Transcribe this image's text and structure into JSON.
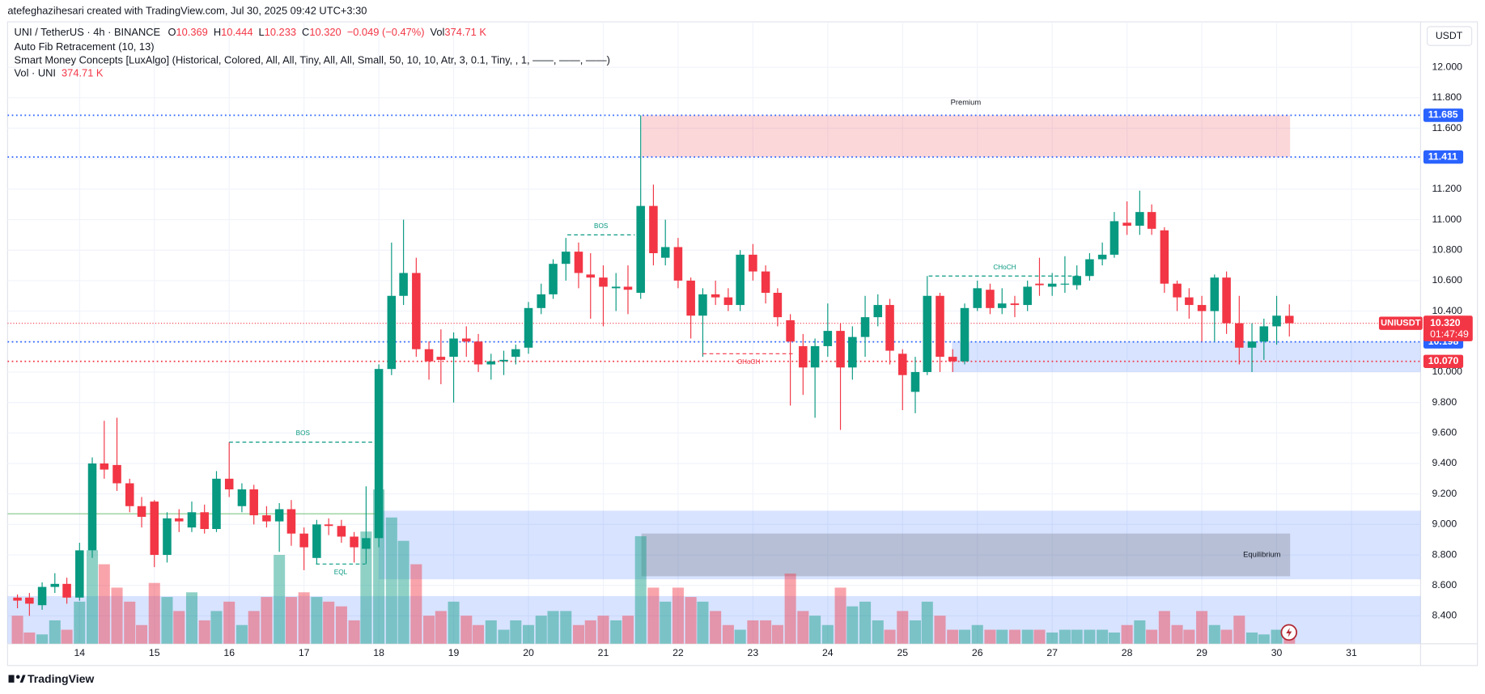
{
  "header": {
    "credit": "atefeghazihesari created with TradingView.com, Jul 30, 2025 09:42 UTC+3:30",
    "logo": "TradingView"
  },
  "legend": {
    "symbol": "UNI / TetherUS · 4h · BINANCE",
    "o_key": "O",
    "o": "10.369",
    "h_key": "H",
    "h": "10.444",
    "l_key": "L",
    "l": "10.233",
    "c_key": "C",
    "c": "10.320",
    "change": "−0.049 (−0.47%)",
    "vol_key": "Vol",
    "vol": "374.71 K",
    "indicators": [
      "Auto Fib Retracement (10, 13)",
      "Smart Money Concepts [LuxAlgo] (Historical, Colored, All, All, Tiny, All, All, Small, 50, 10, 10, Atr, 3, 0.1, Tiny, , 1, ——, ——, ——)"
    ],
    "vol_name": "Vol · UNI",
    "vol_value": "374.71 K"
  },
  "chart_data": {
    "type": "candlestick",
    "currency": "USDT",
    "up_color": "#089981",
    "down_color": "#f23645",
    "grid": true,
    "xlim": [
      13.038,
      31.924
    ],
    "ylim": [
      8.217,
      12.298
    ],
    "volume_lim": [
      0,
      24600
    ],
    "xticks": [
      14,
      15,
      16,
      17,
      18,
      19,
      20,
      21,
      22,
      23,
      24,
      25,
      26,
      27,
      28,
      29,
      30,
      31
    ],
    "yticks": [
      {
        "value": 8.4,
        "label": "8.400"
      },
      {
        "value": 8.6,
        "label": "8.600"
      },
      {
        "value": 8.8,
        "label": "8.800"
      },
      {
        "value": 9.0,
        "label": "9.000"
      },
      {
        "value": 9.2,
        "label": "9.200"
      },
      {
        "value": 9.4,
        "label": "9.400"
      },
      {
        "value": 9.6,
        "label": "9.600"
      },
      {
        "value": 9.8,
        "label": "9.800"
      },
      {
        "value": 10.0,
        "label": "10.000"
      },
      {
        "value": 10.2,
        "label": "10.200"
      },
      {
        "value": 10.4,
        "label": "10.400"
      },
      {
        "value": 10.6,
        "label": "10.600"
      },
      {
        "value": 10.8,
        "label": "10.800"
      },
      {
        "value": 11.0,
        "label": "11.000"
      },
      {
        "value": 11.2,
        "label": "11.200"
      },
      {
        "value": 11.4,
        "label": "11.400"
      },
      {
        "value": 11.6,
        "label": "11.600"
      },
      {
        "value": 11.8,
        "label": "11.800"
      },
      {
        "value": 12.0,
        "label": "12.000"
      }
    ],
    "x": [
      13.17,
      13.33,
      13.5,
      13.67,
      13.83,
      14,
      14.17,
      14.33,
      14.5,
      14.67,
      14.83,
      15,
      15.17,
      15.33,
      15.5,
      15.67,
      15.83,
      16,
      16.17,
      16.33,
      16.5,
      16.67,
      16.83,
      17,
      17.17,
      17.33,
      17.5,
      17.67,
      17.83,
      18,
      18.17,
      18.33,
      18.5,
      18.67,
      18.83,
      19,
      19.17,
      19.33,
      19.5,
      19.67,
      19.83,
      20,
      20.17,
      20.33,
      20.5,
      20.67,
      20.83,
      21,
      21.17,
      21.33,
      21.5,
      21.67,
      21.83,
      22,
      22.17,
      22.33,
      22.5,
      22.67,
      22.83,
      23,
      23.17,
      23.33,
      23.5,
      23.67,
      23.83,
      24,
      24.17,
      24.33,
      24.5,
      24.67,
      24.83,
      25,
      25.17,
      25.33,
      25.5,
      25.67,
      25.83,
      26,
      26.17,
      26.33,
      26.5,
      26.67,
      26.83,
      27,
      27.17,
      27.33,
      27.5,
      27.67,
      27.83,
      28,
      28.17,
      28.33,
      28.5,
      28.67,
      28.83,
      29,
      29.17,
      29.33,
      29.5,
      29.67,
      29.83,
      30,
      30.17
    ],
    "open": [
      8.52,
      8.52,
      8.47,
      8.59,
      8.61,
      8.52,
      8.83,
      9.4,
      9.39,
      9.27,
      9.12,
      9.15,
      8.8,
      9.04,
      8.98,
      9.08,
      8.97,
      9.3,
      9.12,
      9.23,
      9.06,
      9.02,
      9.1,
      8.94,
      8.78,
      9.0,
      8.99,
      8.92,
      8.84,
      8.91,
      10.02,
      10.5,
      10.65,
      10.15,
      10.1,
      10.1,
      10.22,
      10.2,
      10.05,
      10.07,
      10.1,
      10.16,
      10.42,
      10.51,
      10.71,
      10.79,
      10.64,
      10.62,
      10.55,
      10.56,
      10.52,
      11.09,
      10.75,
      10.82,
      10.6,
      10.37,
      10.51,
      10.49,
      10.44,
      10.77,
      10.66,
      10.52,
      10.34,
      10.17,
      10.03,
      10.17,
      10.27,
      10.03,
      10.23,
      10.36,
      10.44,
      10.12,
      9.87,
      10.0,
      10.5,
      10.1,
      10.07,
      10.42,
      10.54,
      10.42,
      10.45,
      10.44,
      10.58,
      10.56,
      10.58,
      10.57,
      10.63,
      10.74,
      10.77,
      10.98,
      10.96,
      11.05,
      10.93,
      10.58,
      10.49,
      10.44,
      10.4,
      10.62,
      10.32,
      10.16,
      10.2,
      10.3,
      10.369
    ],
    "high": [
      8.54,
      8.55,
      8.62,
      8.68,
      8.65,
      8.88,
      9.44,
      9.68,
      9.7,
      9.3,
      9.18,
      9.16,
      9.08,
      9.1,
      9.15,
      9.13,
      9.35,
      9.54,
      9.27,
      9.26,
      9.12,
      9.14,
      9.16,
      8.98,
      9.03,
      9.04,
      9.03,
      8.95,
      9.25,
      10.05,
      10.85,
      11.0,
      10.75,
      10.2,
      10.28,
      10.26,
      10.3,
      10.25,
      10.12,
      10.14,
      10.18,
      10.46,
      10.58,
      10.74,
      10.88,
      10.85,
      10.78,
      10.7,
      10.65,
      10.7,
      11.685,
      11.23,
      11.0,
      10.88,
      10.62,
      10.55,
      10.6,
      10.55,
      10.8,
      10.84,
      10.7,
      10.55,
      10.38,
      10.25,
      10.22,
      10.45,
      10.32,
      10.3,
      10.5,
      10.51,
      10.48,
      10.15,
      10.1,
      10.63,
      10.52,
      10.15,
      10.45,
      10.6,
      10.58,
      10.55,
      10.5,
      10.6,
      10.75,
      10.65,
      10.76,
      10.7,
      10.78,
      10.85,
      11.05,
      11.12,
      11.19,
      11.1,
      10.95,
      10.6,
      10.55,
      10.5,
      10.64,
      10.66,
      10.5,
      10.32,
      10.35,
      10.5,
      10.444
    ],
    "low": [
      8.45,
      8.4,
      8.44,
      8.55,
      8.48,
      8.5,
      8.78,
      9.3,
      9.22,
      9.08,
      8.98,
      8.72,
      8.75,
      8.95,
      8.95,
      8.94,
      8.95,
      9.18,
      9.08,
      9.0,
      8.98,
      8.82,
      8.86,
      8.7,
      8.74,
      8.93,
      8.88,
      8.75,
      8.74,
      8.85,
      9.98,
      10.44,
      10.1,
      9.95,
      9.92,
      9.8,
      10.1,
      10.0,
      9.95,
      9.98,
      10.05,
      10.12,
      10.38,
      10.48,
      10.6,
      10.55,
      10.35,
      10.3,
      10.4,
      10.38,
      10.48,
      10.7,
      10.7,
      10.55,
      10.22,
      10.1,
      10.44,
      10.4,
      10.4,
      10.6,
      10.45,
      10.3,
      9.78,
      9.85,
      9.7,
      10.1,
      9.62,
      9.95,
      10.1,
      10.3,
      10.05,
      9.75,
      9.73,
      9.98,
      10.0,
      10.0,
      10.05,
      10.4,
      10.38,
      10.38,
      10.36,
      10.4,
      10.5,
      10.5,
      10.52,
      10.54,
      10.6,
      10.7,
      10.75,
      10.9,
      10.9,
      10.9,
      10.52,
      10.4,
      10.35,
      10.2,
      10.2,
      10.25,
      10.05,
      10.0,
      10.08,
      10.18,
      10.233
    ],
    "close": [
      8.5,
      8.48,
      8.59,
      8.61,
      8.52,
      8.83,
      9.4,
      9.36,
      9.27,
      9.12,
      9.05,
      8.8,
      9.04,
      9.02,
      9.08,
      8.97,
      9.3,
      9.23,
      9.23,
      9.06,
      9.02,
      9.1,
      8.94,
      8.85,
      9.0,
      8.99,
      8.92,
      8.85,
      8.91,
      10.02,
      10.5,
      10.65,
      10.15,
      10.07,
      10.08,
      10.22,
      10.2,
      10.05,
      10.07,
      10.08,
      10.15,
      10.42,
      10.51,
      10.71,
      10.79,
      10.65,
      10.62,
      10.56,
      10.56,
      10.54,
      11.09,
      10.78,
      10.82,
      10.6,
      10.37,
      10.51,
      10.49,
      10.44,
      10.77,
      10.66,
      10.52,
      10.36,
      10.2,
      10.03,
      10.17,
      10.27,
      10.03,
      10.23,
      10.36,
      10.44,
      10.14,
      9.98,
      10.0,
      10.5,
      10.1,
      10.07,
      10.42,
      10.55,
      10.42,
      10.45,
      10.44,
      10.56,
      10.57,
      10.58,
      10.58,
      10.63,
      10.74,
      10.77,
      10.99,
      10.96,
      11.05,
      10.94,
      10.58,
      10.49,
      10.44,
      10.4,
      10.62,
      10.32,
      10.16,
      10.2,
      10.3,
      10.37,
      10.32
    ],
    "volume": [
      1110,
      444,
      370,
      925,
      555,
      1665,
      3700,
      3145,
      2220,
      1665,
      740,
      2405,
      1850,
      1295,
      2035,
      925,
      1295,
      1665,
      740,
      1295,
      1850,
      3515,
      1850,
      2035,
      1850,
      1665,
      1480,
      925,
      4440,
      6105,
      4995,
      4070,
      3145,
      1110,
      1295,
      1665,
      1110,
      740,
      925,
      555,
      925,
      740,
      1110,
      1295,
      1295,
      740,
      925,
      1110,
      925,
      1110,
      4255,
      2220,
      1665,
      2220,
      1850,
      1665,
      1295,
      740,
      555,
      925,
      925,
      740,
      2775,
      1295,
      1110,
      740,
      2220,
      1480,
      1665,
      925,
      555,
      1295,
      925,
      1665,
      1110,
      555,
      555,
      740,
      555,
      555,
      555,
      555,
      555,
      444,
      555,
      555,
      555,
      555,
      444,
      740,
      925,
      555,
      1295,
      740,
      555,
      1295,
      740,
      555,
      1110,
      444,
      370,
      555,
      374.71
    ],
    "zones": [
      {
        "x0": 18.0,
        "x1": 31.924,
        "top": 9.09,
        "bottom": 8.64,
        "color": "#2962ff",
        "opacity": 0.18
      },
      {
        "x0": 13.038,
        "x1": 31.924,
        "top": 8.53,
        "bottom": 8.22,
        "color": "#2962ff",
        "opacity": 0.18
      },
      {
        "x0": 25.66,
        "x1": 31.924,
        "top": 10.198,
        "bottom": 10.0,
        "color": "#2962ff",
        "opacity": 0.18
      },
      {
        "x0": 21.51,
        "x1": 30.18,
        "top": 11.685,
        "bottom": 11.411,
        "color": "#f23645",
        "opacity": 0.2,
        "label": "Premium",
        "label_color": "#f23645"
      },
      {
        "x0": 21.51,
        "x1": 30.18,
        "top": 8.94,
        "bottom": 8.66,
        "color": "#787b86",
        "opacity": 0.35,
        "label": "Equilibrium",
        "label_color": "#9598a1"
      }
    ],
    "levels": [
      {
        "value": 11.685,
        "label": "11.685",
        "color": "#2962ff"
      },
      {
        "value": 11.411,
        "label": "11.411",
        "color": "#2962ff"
      },
      {
        "value": 10.198,
        "label": "10.198",
        "color": "#2962ff"
      },
      {
        "value": 10.07,
        "label": "10.070",
        "color": "#f23645"
      }
    ],
    "lines": [
      {
        "value": 9.07,
        "x0": 13.038,
        "x1": 18.0,
        "color": "#4caf50"
      }
    ],
    "structures": [
      {
        "label": "BOS",
        "price": 9.54,
        "x0": 16.0,
        "x1": 17.97,
        "color": "#089981"
      },
      {
        "label": "BOS",
        "price": 10.9,
        "x0": 20.52,
        "x1": 21.42,
        "color": "#089981"
      },
      {
        "label": "CHoCH",
        "price": 10.63,
        "x0": 25.35,
        "x1": 27.38,
        "color": "#089981"
      },
      {
        "label": "CHoCH",
        "price": 10.12,
        "x0": 22.33,
        "x1": 23.56,
        "color": "#f23645",
        "below": true
      },
      {
        "label": "EQL",
        "price": 8.74,
        "x0": 17.16,
        "x1": 17.82,
        "color": "#089981",
        "below": true
      }
    ],
    "price_tag": {
      "name": "UNIUSDT",
      "value": 10.32,
      "label": "10.320",
      "countdown": "01:47:49",
      "color": "#f23645"
    }
  }
}
